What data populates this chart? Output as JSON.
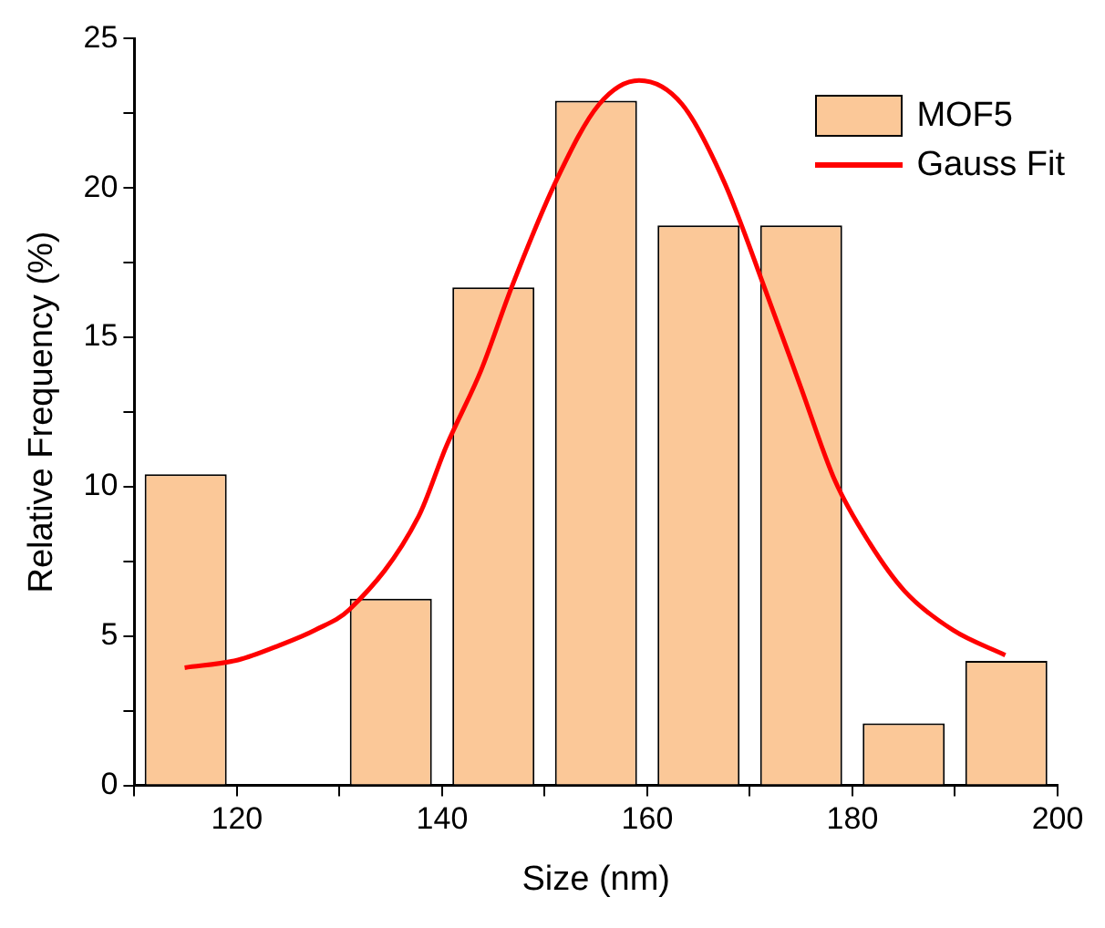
{
  "chart_data": {
    "type": "histogram",
    "xlabel": "Size (nm)",
    "ylabel": "Relative Frequency (%)",
    "bins": [
      110,
      120,
      130,
      140,
      150,
      160,
      170,
      180,
      190,
      200
    ],
    "series": [
      {
        "name": "MOF5",
        "type": "histogram",
        "color": "#fbc898",
        "values": [
          10.42,
          0,
          6.25,
          16.67,
          22.92,
          18.75,
          18.75,
          2.08,
          4.17
        ]
      },
      {
        "name": "Gauss Fit",
        "type": "line",
        "color": "#ff0000",
        "marker": "none",
        "line_style": "solid",
        "x": [
          114.9,
          120.1,
          124.2,
          127.6,
          131,
          137.7,
          140.4,
          143.8,
          146.8,
          151.2,
          155.3,
          159.2,
          163.4,
          167.5,
          171.6,
          175,
          178.3,
          181.7,
          185.1,
          189.8,
          194.9
        ],
        "values": [
          3.94,
          4.2,
          4.7,
          5.2,
          5.9,
          9.0,
          11.35,
          13.9,
          16.7,
          20.3,
          22.8,
          23.6,
          22.8,
          20.2,
          16.5,
          13.3,
          10.2,
          8.1,
          6.5,
          5.2,
          4.36
        ]
      }
    ],
    "xlim": [
      110,
      200
    ],
    "xticks": [
      {
        "value": 110,
        "label": null
      },
      120,
      {
        "value": 130,
        "label": null
      },
      140,
      {
        "value": 150,
        "label": null
      },
      160,
      {
        "value": 170,
        "label": null
      },
      180,
      {
        "value": 190,
        "label": null
      },
      200
    ],
    "ylim": [
      0,
      25
    ],
    "yticks": [
      0,
      {
        "value": 2.5,
        "label": null
      },
      5,
      {
        "value": 7.5,
        "label": null
      },
      10,
      {
        "value": 12.5,
        "label": null
      },
      15,
      {
        "value": 17.5,
        "label": null
      },
      20,
      {
        "value": 22.5,
        "label": null
      },
      25
    ],
    "grid": false,
    "legend": "top right"
  }
}
